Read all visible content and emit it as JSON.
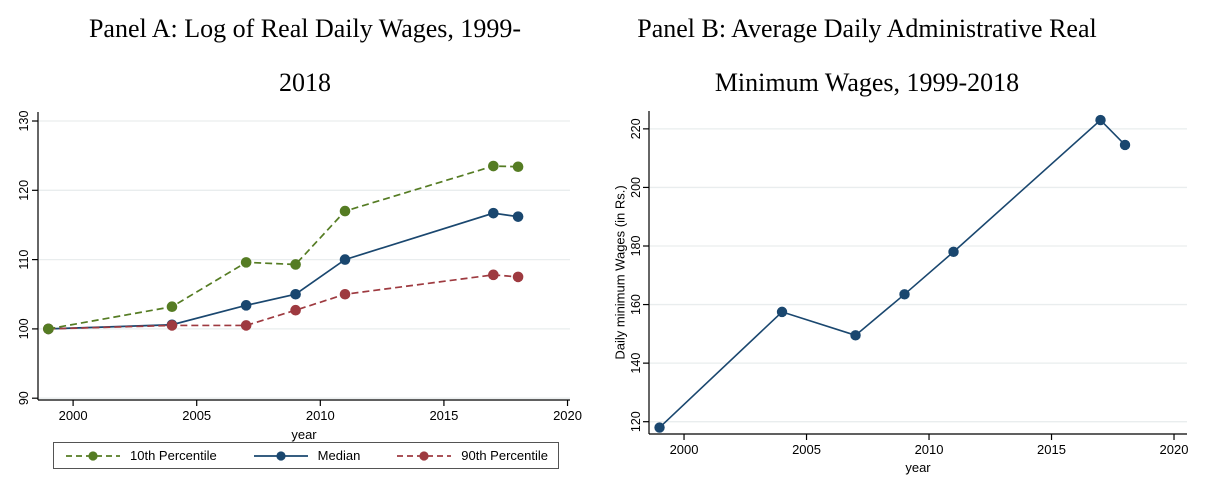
{
  "figure": {
    "background": "#ffffff"
  },
  "panels": [
    {
      "id": "panel-a",
      "title_line1": "Panel A: Log of Real Daily Wages, 1999-",
      "title_line2": "2018"
    },
    {
      "id": "panel-b",
      "title_line1": "Panel B: Average Daily Administrative Real",
      "title_line2": "Minimum Wages, 1999-2018"
    }
  ],
  "colors": {
    "green": "#557c23",
    "navy": "#1a476f",
    "maroon": "#9e3a40",
    "grid": "#e9edee",
    "axis": "#000000",
    "legend_border": "#545454"
  },
  "chart_data": [
    {
      "type": "line",
      "title": "Panel A: Log of Real Daily Wages, 1999-2018",
      "x": [
        1999,
        2004,
        2007,
        2009,
        2011,
        2017,
        2018
      ],
      "series": [
        {
          "name": "10th Percentile",
          "values": [
            100,
            103.2,
            109.6,
            109.3,
            117,
            123.5,
            123.4
          ],
          "color": "#557c23",
          "dash": "7 4"
        },
        {
          "name": "Median",
          "values": [
            100,
            100.6,
            103.4,
            105,
            110,
            116.7,
            116.2
          ],
          "color": "#1a476f",
          "dash": ""
        },
        {
          "name": "90th Percentile",
          "values": [
            100,
            100.5,
            100.5,
            102.7,
            105,
            107.8,
            107.5
          ],
          "color": "#9e3a40",
          "dash": "7 4"
        }
      ],
      "xlabel": "year",
      "ylabel": "",
      "xticks": [
        2000,
        2005,
        2010,
        2015,
        2020
      ],
      "yticks": [
        90,
        100,
        110,
        120,
        130
      ],
      "xlim": [
        1998.58,
        2020.1
      ],
      "ylim": [
        89.74,
        131.3
      ],
      "grid": true,
      "legend_position": "bottom",
      "draw_order": [
        1,
        2,
        0
      ]
    },
    {
      "type": "line",
      "title": "Panel B: Average Daily Administrative Real Minimum Wages, 1999-2018",
      "x": [
        1999,
        2004,
        2007,
        2009,
        2011,
        2017,
        2018
      ],
      "series": [
        {
          "name": "Daily minimum Wages",
          "values": [
            118,
            157.5,
            149.5,
            163.5,
            178,
            223,
            214.5
          ],
          "color": "#1a476f",
          "dash": ""
        }
      ],
      "xlabel": "year",
      "ylabel": "Daily minimum Wages (in Rs.)",
      "xticks": [
        2000,
        2005,
        2010,
        2015,
        2020
      ],
      "yticks": [
        120,
        140,
        160,
        180,
        200,
        220
      ],
      "xlim": [
        1998.57,
        2020.53
      ],
      "ylim": [
        115.8,
        226.1
      ],
      "grid": true,
      "legend_position": "none"
    }
  ]
}
